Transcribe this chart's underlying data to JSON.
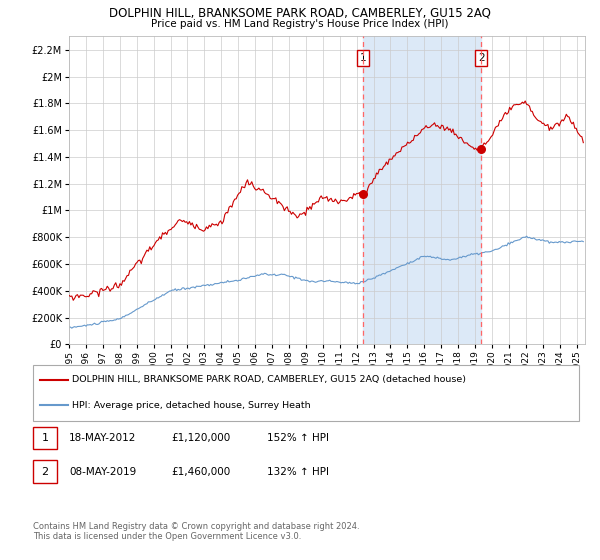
{
  "title": "DOLPHIN HILL, BRANKSOME PARK ROAD, CAMBERLEY, GU15 2AQ",
  "subtitle": "Price paid vs. HM Land Registry's House Price Index (HPI)",
  "red_legend": "DOLPHIN HILL, BRANKSOME PARK ROAD, CAMBERLEY, GU15 2AQ (detached house)",
  "blue_legend": "HPI: Average price, detached house, Surrey Heath",
  "annotation1_label": "1",
  "annotation1_date": "18-MAY-2012",
  "annotation1_price": "£1,120,000",
  "annotation1_hpi": "152% ↑ HPI",
  "annotation1_year": 2012.38,
  "annotation1_value": 1120000,
  "annotation2_label": "2",
  "annotation2_date": "08-MAY-2019",
  "annotation2_price": "£1,460,000",
  "annotation2_hpi": "132% ↑ HPI",
  "annotation2_year": 2019.36,
  "annotation2_value": 1460000,
  "footer_line1": "Contains HM Land Registry data © Crown copyright and database right 2024.",
  "footer_line2": "This data is licensed under the Open Government Licence v3.0.",
  "ylim": [
    0,
    2300000
  ],
  "xlim_start": 1995.0,
  "xlim_end": 2025.5,
  "background_color": "#ffffff",
  "shaded_region_color": "#dce9f7",
  "grid_color": "#cccccc",
  "red_color": "#cc0000",
  "blue_color": "#6699cc",
  "dashed_color": "#ff6666",
  "title_fontsize": 8.5,
  "subtitle_fontsize": 7.5,
  "tick_fontsize": 6.5,
  "ytick_fontsize": 7.0
}
